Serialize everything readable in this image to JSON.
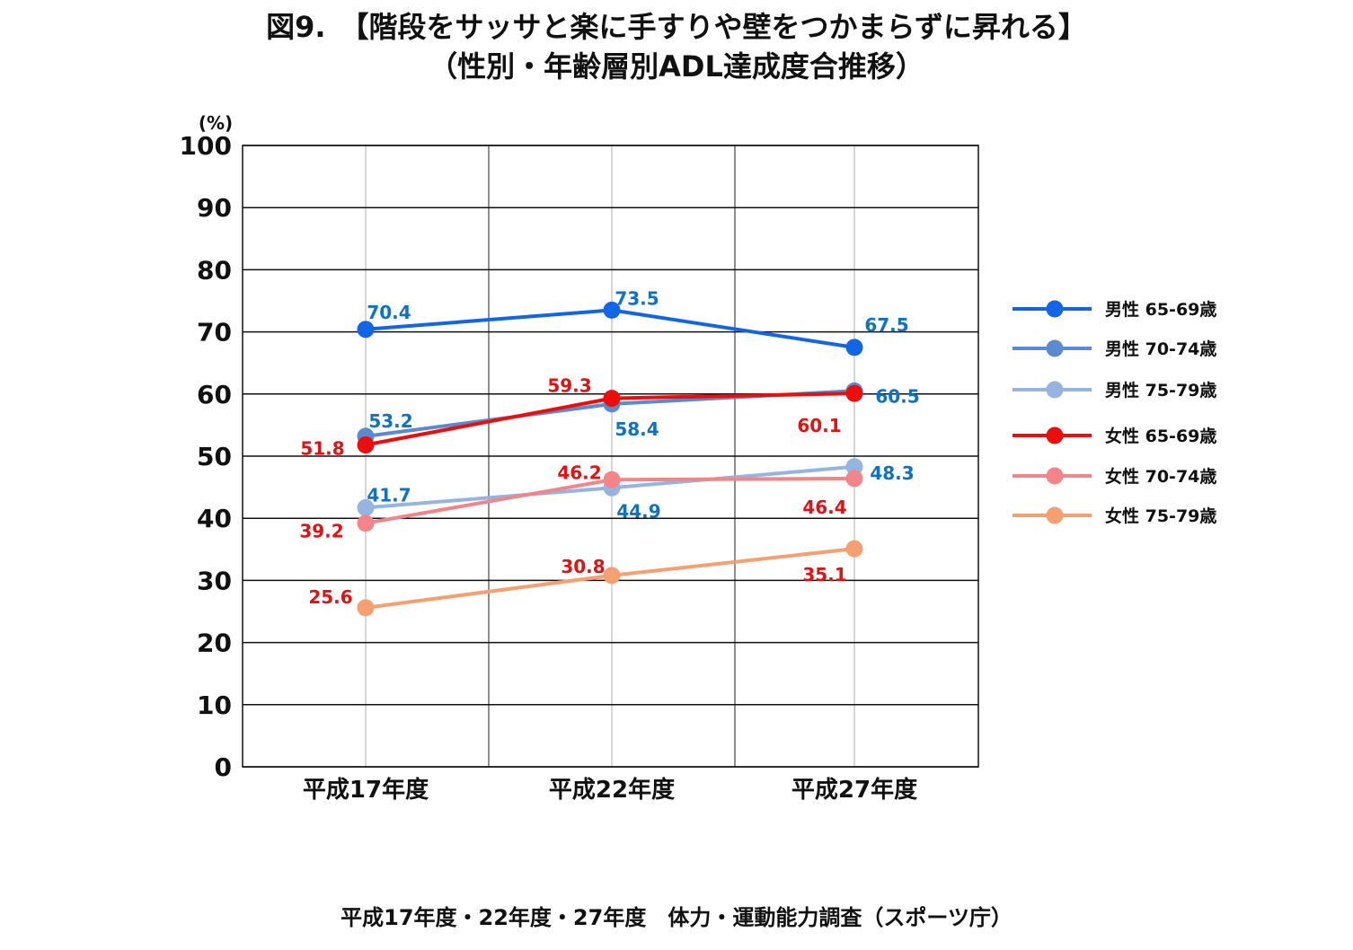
{
  "title_line1": "図9.　【階段をサッサと楽に手すりや壁をつかまらずに昇れる】",
  "title_line2": "（性別・年齢層別ADL達成度合推移）",
  "footer": "平成17年度・22年度・27年度　体力・運動能力調査（スポーツ庁）",
  "chart_data": {
    "type": "line",
    "title": "",
    "xlabel": "",
    "ylabel": "(%)",
    "ylim": [
      0,
      100
    ],
    "yticks": [
      0,
      10,
      20,
      30,
      40,
      50,
      60,
      70,
      80,
      90,
      100
    ],
    "grid": true,
    "legend_position": "right",
    "categories": [
      "平成17年度",
      "平成22年度",
      "平成27年度"
    ],
    "series": [
      {
        "name": "男性 65-69歳",
        "color": "#1266e6",
        "label_color": "#0f72c0",
        "values": [
          70.4,
          73.5,
          67.5
        ]
      },
      {
        "name": "男性 70-74歳",
        "color": "#5a8bd1",
        "label_color": "#0f72c0",
        "values": [
          53.2,
          58.4,
          60.5
        ]
      },
      {
        "name": "男性 75-79歳",
        "color": "#95b4df",
        "label_color": "#0f72c0",
        "values": [
          41.7,
          44.9,
          48.3
        ]
      },
      {
        "name": "女性 65-69歳",
        "color": "#ec0d0d",
        "label_color": "#e11212",
        "values": [
          51.8,
          59.3,
          60.1
        ]
      },
      {
        "name": "女性 70-74歳",
        "color": "#f3848a",
        "label_color": "#e11212",
        "values": [
          39.2,
          46.2,
          46.4
        ]
      },
      {
        "name": "女性 75-79歳",
        "color": "#f4a071",
        "label_color": "#e11212",
        "values": [
          25.6,
          30.8,
          35.1
        ]
      }
    ]
  }
}
